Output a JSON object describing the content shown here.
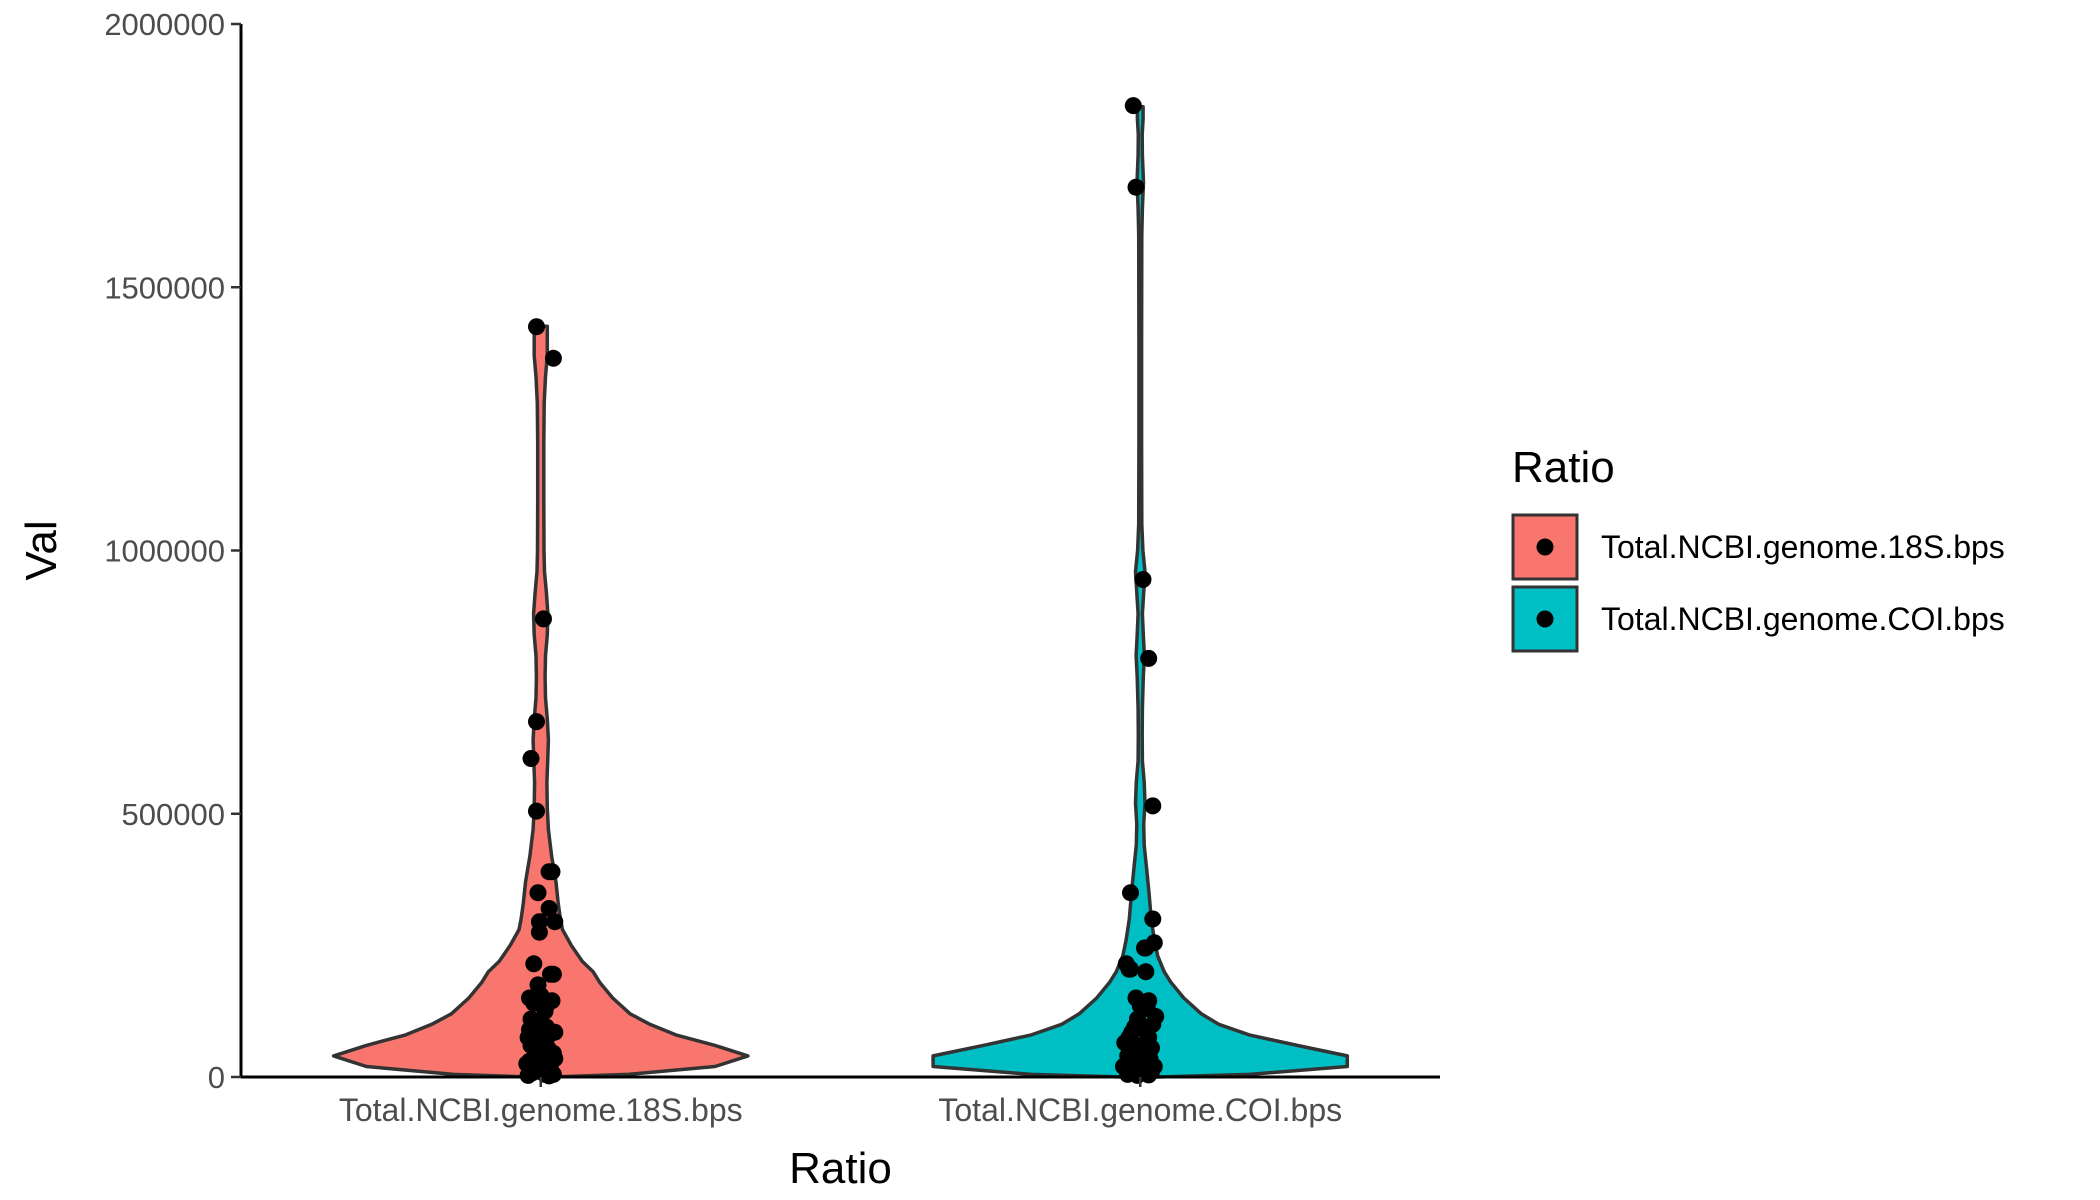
{
  "chart_data": {
    "type": "violin",
    "xlabel": "Ratio",
    "ylabel": "Val",
    "ylim": [
      0,
      2000000
    ],
    "yticks": [
      0,
      500000,
      1000000,
      1500000,
      2000000
    ],
    "grid": false,
    "legend": {
      "title": "Ratio",
      "position": "right"
    },
    "categories": [
      "Total.NCBI.genome.18S.bps",
      "Total.NCBI.genome.COI.bps"
    ],
    "colors": [
      "#F8766D",
      "#00BFC4"
    ],
    "outline_color": "#333333",
    "point_color": "#000000",
    "series": [
      {
        "name": "Total.NCBI.genome.18S.bps",
        "density_profile": [
          [
            0,
            0.05
          ],
          [
            5000,
            0.4
          ],
          [
            20000,
            0.8
          ],
          [
            40000,
            0.95
          ],
          [
            60000,
            0.8
          ],
          [
            80000,
            0.62
          ],
          [
            100000,
            0.5
          ],
          [
            120000,
            0.41
          ],
          [
            150000,
            0.33
          ],
          [
            180000,
            0.27
          ],
          [
            200000,
            0.24
          ],
          [
            220000,
            0.19
          ],
          [
            250000,
            0.14
          ],
          [
            280000,
            0.1
          ],
          [
            300000,
            0.09
          ],
          [
            330000,
            0.08
          ],
          [
            370000,
            0.07
          ],
          [
            420000,
            0.05
          ],
          [
            470000,
            0.035
          ],
          [
            510000,
            0.03
          ],
          [
            560000,
            0.028
          ],
          [
            600000,
            0.032
          ],
          [
            640000,
            0.035
          ],
          [
            680000,
            0.03
          ],
          [
            720000,
            0.022
          ],
          [
            760000,
            0.02
          ],
          [
            800000,
            0.022
          ],
          [
            840000,
            0.03
          ],
          [
            880000,
            0.033
          ],
          [
            920000,
            0.026
          ],
          [
            960000,
            0.017
          ],
          [
            1000000,
            0.015
          ],
          [
            1100000,
            0.014
          ],
          [
            1200000,
            0.014
          ],
          [
            1280000,
            0.016
          ],
          [
            1330000,
            0.022
          ],
          [
            1370000,
            0.03
          ],
          [
            1400000,
            0.03
          ],
          [
            1426000,
            0.03
          ]
        ],
        "points": [
          [
            -0.03,
            1425000
          ],
          [
            0.09,
            1365000
          ],
          [
            0.02,
            870000
          ],
          [
            -0.03,
            675000
          ],
          [
            -0.07,
            605000
          ],
          [
            -0.03,
            505000
          ],
          [
            0.06,
            390000
          ],
          [
            0.08,
            390000
          ],
          [
            -0.02,
            350000
          ],
          [
            0.06,
            320000
          ],
          [
            -0.01,
            295000
          ],
          [
            0.1,
            295000
          ],
          [
            -0.01,
            275000
          ],
          [
            -0.05,
            215000
          ],
          [
            0.07,
            195000
          ],
          [
            0.09,
            195000
          ],
          [
            -0.02,
            175000
          ],
          [
            0.0,
            155000
          ],
          [
            -0.08,
            150000
          ],
          [
            -0.03,
            145000
          ],
          [
            -0.05,
            140000
          ],
          [
            0.08,
            145000
          ],
          [
            0.04,
            135000
          ],
          [
            0.03,
            125000
          ],
          [
            -0.07,
            110000
          ],
          [
            0.01,
            100000
          ],
          [
            -0.08,
            90000
          ],
          [
            0.04,
            95000
          ],
          [
            0.1,
            85000
          ],
          [
            -0.03,
            85000
          ],
          [
            0.06,
            80000
          ],
          [
            -0.09,
            75000
          ],
          [
            -0.06,
            70000
          ],
          [
            0.02,
            65000
          ],
          [
            -0.07,
            60000
          ],
          [
            0.05,
            55000
          ],
          [
            -0.02,
            50000
          ],
          [
            0.09,
            45000
          ],
          [
            0.03,
            45000
          ],
          [
            -0.04,
            40000
          ],
          [
            0.06,
            40000
          ],
          [
            0.1,
            35000
          ],
          [
            -0.08,
            30000
          ],
          [
            0.01,
            30000
          ],
          [
            -0.1,
            25000
          ],
          [
            -0.05,
            20000
          ],
          [
            0.04,
            20000
          ],
          [
            0.07,
            15000
          ],
          [
            -0.02,
            12000
          ],
          [
            0.0,
            10000
          ],
          [
            -0.06,
            8000
          ],
          [
            0.09,
            5000
          ],
          [
            0.03,
            5000
          ],
          [
            -0.09,
            3000
          ],
          [
            0.06,
            2000
          ]
        ]
      },
      {
        "name": "Total.NCBI.genome.COI.bps",
        "density_profile": [
          [
            0,
            0.08
          ],
          [
            5000,
            0.5
          ],
          [
            20000,
            0.95
          ],
          [
            40000,
            0.95
          ],
          [
            60000,
            0.72
          ],
          [
            80000,
            0.5
          ],
          [
            100000,
            0.36
          ],
          [
            120000,
            0.28
          ],
          [
            150000,
            0.2
          ],
          [
            180000,
            0.14
          ],
          [
            200000,
            0.11
          ],
          [
            230000,
            0.08
          ],
          [
            260000,
            0.065
          ],
          [
            300000,
            0.05
          ],
          [
            350000,
            0.04
          ],
          [
            400000,
            0.028
          ],
          [
            440000,
            0.018
          ],
          [
            480000,
            0.016
          ],
          [
            520000,
            0.022
          ],
          [
            560000,
            0.018
          ],
          [
            600000,
            0.01
          ],
          [
            650000,
            0.009
          ],
          [
            700000,
            0.01
          ],
          [
            760000,
            0.014
          ],
          [
            800000,
            0.019
          ],
          [
            840000,
            0.014
          ],
          [
            880000,
            0.01
          ],
          [
            920000,
            0.016
          ],
          [
            960000,
            0.022
          ],
          [
            1000000,
            0.012
          ],
          [
            1050000,
            0.007
          ],
          [
            1200000,
            0.006
          ],
          [
            1400000,
            0.006
          ],
          [
            1600000,
            0.007
          ],
          [
            1650000,
            0.01
          ],
          [
            1700000,
            0.015
          ],
          [
            1750000,
            0.01
          ],
          [
            1790000,
            0.009
          ],
          [
            1820000,
            0.013
          ],
          [
            1843000,
            0.013
          ]
        ],
        "points": [
          [
            -0.05,
            1845000
          ],
          [
            -0.03,
            1690000
          ],
          [
            0.02,
            945000
          ],
          [
            0.06,
            795000
          ],
          [
            0.09,
            515000
          ],
          [
            -0.07,
            350000
          ],
          [
            0.09,
            300000
          ],
          [
            0.1,
            255000
          ],
          [
            0.03,
            245000
          ],
          [
            0.04,
            245000
          ],
          [
            -0.1,
            215000
          ],
          [
            -0.08,
            205000
          ],
          [
            -0.07,
            205000
          ],
          [
            0.04,
            200000
          ],
          [
            -0.03,
            150000
          ],
          [
            0.06,
            145000
          ],
          [
            0.0,
            135000
          ],
          [
            0.05,
            130000
          ],
          [
            0.11,
            115000
          ],
          [
            -0.02,
            110000
          ],
          [
            0.09,
            100000
          ],
          [
            -0.04,
            95000
          ],
          [
            0.03,
            90000
          ],
          [
            -0.06,
            85000
          ],
          [
            -0.08,
            75000
          ],
          [
            0.06,
            75000
          ],
          [
            -0.11,
            65000
          ],
          [
            0.01,
            60000
          ],
          [
            -0.05,
            55000
          ],
          [
            0.08,
            55000
          ],
          [
            -0.01,
            50000
          ],
          [
            0.04,
            45000
          ],
          [
            -0.09,
            40000
          ],
          [
            0.02,
            40000
          ],
          [
            0.07,
            35000
          ],
          [
            -0.03,
            30000
          ],
          [
            -0.06,
            25000
          ],
          [
            0.05,
            25000
          ],
          [
            0.1,
            20000
          ],
          [
            -0.12,
            20000
          ],
          [
            0.0,
            15000
          ],
          [
            -0.04,
            12000
          ],
          [
            0.08,
            10000
          ],
          [
            0.03,
            8000
          ],
          [
            -0.09,
            5000
          ],
          [
            0.06,
            4000
          ],
          [
            -0.02,
            3000
          ]
        ]
      }
    ]
  }
}
